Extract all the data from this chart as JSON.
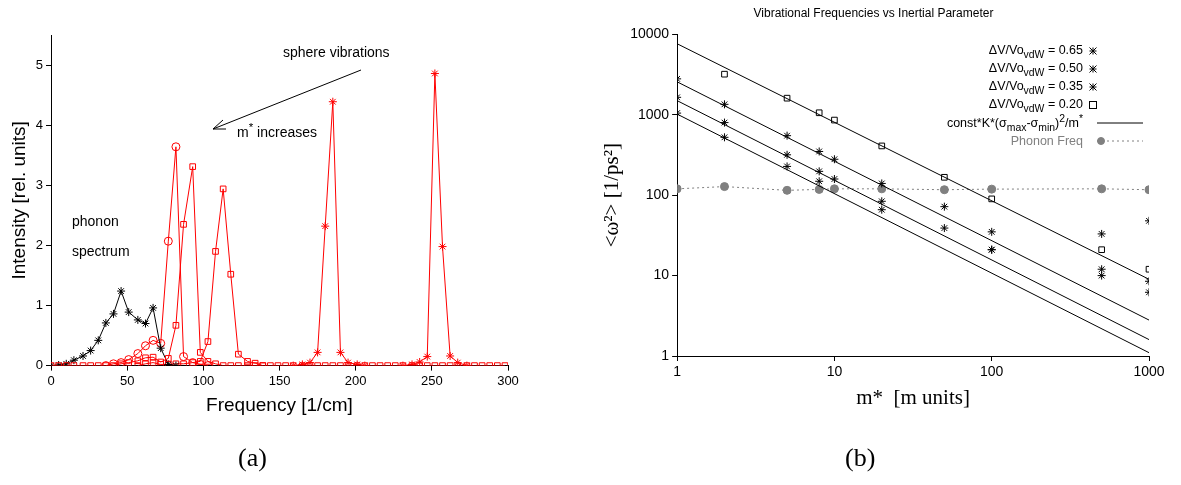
{
  "chart_data": [
    {
      "type": "line",
      "xlabel": "Frequency [1/cm]",
      "ylabel": "Intensity [rel. units]",
      "annotations": [
        "sphere vibrations",
        "m$^{*}$ increases",
        "(a)"
      ],
      "xlim": [
        0,
        300
      ],
      "xticks": [
        0,
        50,
        100,
        150,
        200,
        250,
        300
      ],
      "ylim": [
        0,
        5.5
      ],
      "yticks": [
        0,
        1,
        2,
        3,
        4,
        5
      ],
      "line_style": "solid",
      "x": [
        0,
        5,
        10,
        15,
        21,
        26,
        31,
        36,
        41,
        46,
        51,
        57,
        62,
        67,
        72,
        77,
        82,
        87,
        93,
        98,
        103,
        108,
        113,
        118,
        123,
        129,
        134,
        139,
        144,
        149,
        154,
        159,
        165,
        170,
        175,
        180,
        185,
        190,
        195,
        201,
        206,
        211,
        216,
        221,
        226,
        231,
        237,
        242,
        247,
        252,
        257,
        262,
        267,
        273,
        278,
        283,
        288,
        293,
        298
      ],
      "series": [
        {
          "color": "#ff0000",
          "marker": "square",
          "values": [
            0,
            0,
            0,
            0,
            0,
            0,
            0,
            0,
            0,
            0.03,
            0.05,
            0.08,
            0.13,
            0.14,
            0.06,
            0.12,
            0.67,
            2.35,
            3.31,
            0.22,
            0.07,
            0.03,
            0,
            0,
            0,
            0,
            0,
            0,
            0,
            0,
            0,
            0,
            0,
            0,
            0,
            0,
            0,
            0,
            0,
            0,
            0,
            0,
            0,
            0,
            0,
            0,
            0,
            0,
            0,
            0,
            0,
            0,
            0,
            0,
            0,
            0,
            0,
            0,
            0
          ]
        },
        {
          "name": "phonon spectrum",
          "color": "#000000",
          "marker": "cross",
          "x": [
            0,
            5,
            10,
            15,
            21,
            26,
            31,
            36,
            41,
            46,
            51,
            57,
            62,
            67,
            72,
            77,
            82
          ],
          "values": [
            0,
            0.01,
            0.03,
            0.09,
            0.16,
            0.25,
            0.42,
            0.71,
            0.86,
            1.24,
            0.89,
            0.76,
            0.7,
            0.96,
            0.29,
            0.02,
            0
          ]
        },
        {
          "color": "#ff0000",
          "marker": "circle",
          "x": [
            36,
            41,
            46,
            51,
            57,
            62,
            67,
            72,
            77,
            82,
            87,
            93,
            98,
            103
          ],
          "values": [
            0,
            0.03,
            0.05,
            0.1,
            0.2,
            0.33,
            0.42,
            0.37,
            2.07,
            3.64,
            0.15,
            0.05,
            0.02,
            0
          ]
        },
        {
          "color": "#ff0000",
          "marker": "square",
          "x": [
            57,
            62,
            67,
            72,
            77,
            82,
            87,
            93,
            98,
            103,
            108,
            113,
            118,
            123,
            129,
            134,
            139
          ],
          "values": [
            0,
            0.03,
            0.05,
            0.02,
            0.02,
            0.03,
            0.03,
            0.05,
            0.07,
            0.4,
            1.9,
            2.94,
            1.52,
            0.19,
            0.07,
            0.04,
            0
          ]
        },
        {
          "color": "#ff0000",
          "marker": "cross",
          "x": [
            159,
            165,
            170,
            175,
            180,
            185,
            190,
            195,
            201,
            206
          ],
          "values": [
            0,
            0.02,
            0.05,
            0.22,
            2.32,
            4.39,
            0.22,
            0.05,
            0.02,
            0
          ]
        },
        {
          "color": "#ff0000",
          "marker": "cross",
          "x": [
            231,
            237,
            242,
            247,
            252,
            257,
            262,
            267,
            273
          ],
          "values": [
            0,
            0.02,
            0.06,
            0.15,
            4.86,
            1.98,
            0.16,
            0.05,
            0
          ]
        }
      ]
    },
    {
      "type": "scatter",
      "title": "Vibrational Frequencies vs Inertial Parameter",
      "xlabel": "m*  [m units]",
      "ylabel": "<ω²> [1/ps²]",
      "annotations": [
        "(b)"
      ],
      "log": "xy",
      "xlim": [
        1,
        1000
      ],
      "xticks": [
        1,
        10,
        100,
        1000
      ],
      "ylim": [
        1,
        10000
      ],
      "yticks": [
        1,
        10,
        100,
        1000,
        10000
      ],
      "legend": "top right",
      "series": [
        {
          "name": "ΔV/Vo$_{vdW}$ = 0.65",
          "color": "#000000",
          "marker": "cross",
          "x": [
            1,
            2,
            5,
            8,
            20,
            100,
            500,
            1000
          ],
          "values": [
            1050,
            525,
            228,
            149,
            66,
            21,
            10,
            48
          ]
        },
        {
          "name": "ΔV/Vo$_{vdW}$ = 0.50",
          "color": "#000000",
          "marker": "cross",
          "x": [
            1,
            2,
            5,
            8,
            10,
            20,
            50,
            100,
            500,
            1000
          ],
          "values": [
            1650,
            800,
            318,
            198,
            159,
            84,
            39,
            21,
            12,
            6.2
          ]
        },
        {
          "name": "ΔV/Vo$_{vdW}$ = 0.35",
          "color": "#000000",
          "marker": "cross",
          "x": [
            1,
            2,
            5,
            8,
            10,
            20,
            50,
            100,
            500,
            1000
          ],
          "values": [
            2800,
            1350,
            550,
            350,
            280,
            140,
            72,
            35,
            33,
            8.5
          ]
        },
        {
          "name": "ΔV/Vo$_{vdW}$ = 0.20",
          "color": "#000000",
          "marker": "square",
          "x": [
            2,
            5,
            8,
            10,
            20,
            50,
            100,
            500,
            1000
          ],
          "values": [
            3200,
            1610,
            1060,
            860,
            410,
            167,
            90,
            21,
            12
          ]
        },
        {
          "name": "const*K*(σ$_{max}$-σ$_{min}$)$^{2}$/m$^{*}$",
          "type": "line",
          "color": "#000000",
          "marker": "none",
          "line_style": "solid",
          "x": [
            1,
            1000
          ],
          "values": [
            7650,
            9
          ]
        },
        {
          "type": "line",
          "color": "#000000",
          "marker": "none",
          "line_style": "solid",
          "x": [
            1,
            1000
          ],
          "values": [
            2570,
            2.8
          ]
        },
        {
          "type": "line",
          "color": "#000000",
          "marker": "none",
          "line_style": "solid",
          "x": [
            1,
            1000
          ],
          "values": [
            1500,
            1.6
          ]
        },
        {
          "type": "line",
          "color": "#000000",
          "marker": "none",
          "line_style": "solid",
          "x": [
            1,
            1000
          ],
          "values": [
            1020,
            1.1
          ]
        },
        {
          "name": "Phonon Freq",
          "type": "line",
          "color": "#808080",
          "marker": "circle",
          "line_style": "dotted",
          "x": [
            1,
            2,
            5,
            8,
            10,
            20,
            50,
            100,
            500,
            1000
          ],
          "values": [
            120,
            128,
            115,
            118,
            120,
            120,
            117,
            119,
            120,
            117
          ]
        }
      ]
    }
  ]
}
